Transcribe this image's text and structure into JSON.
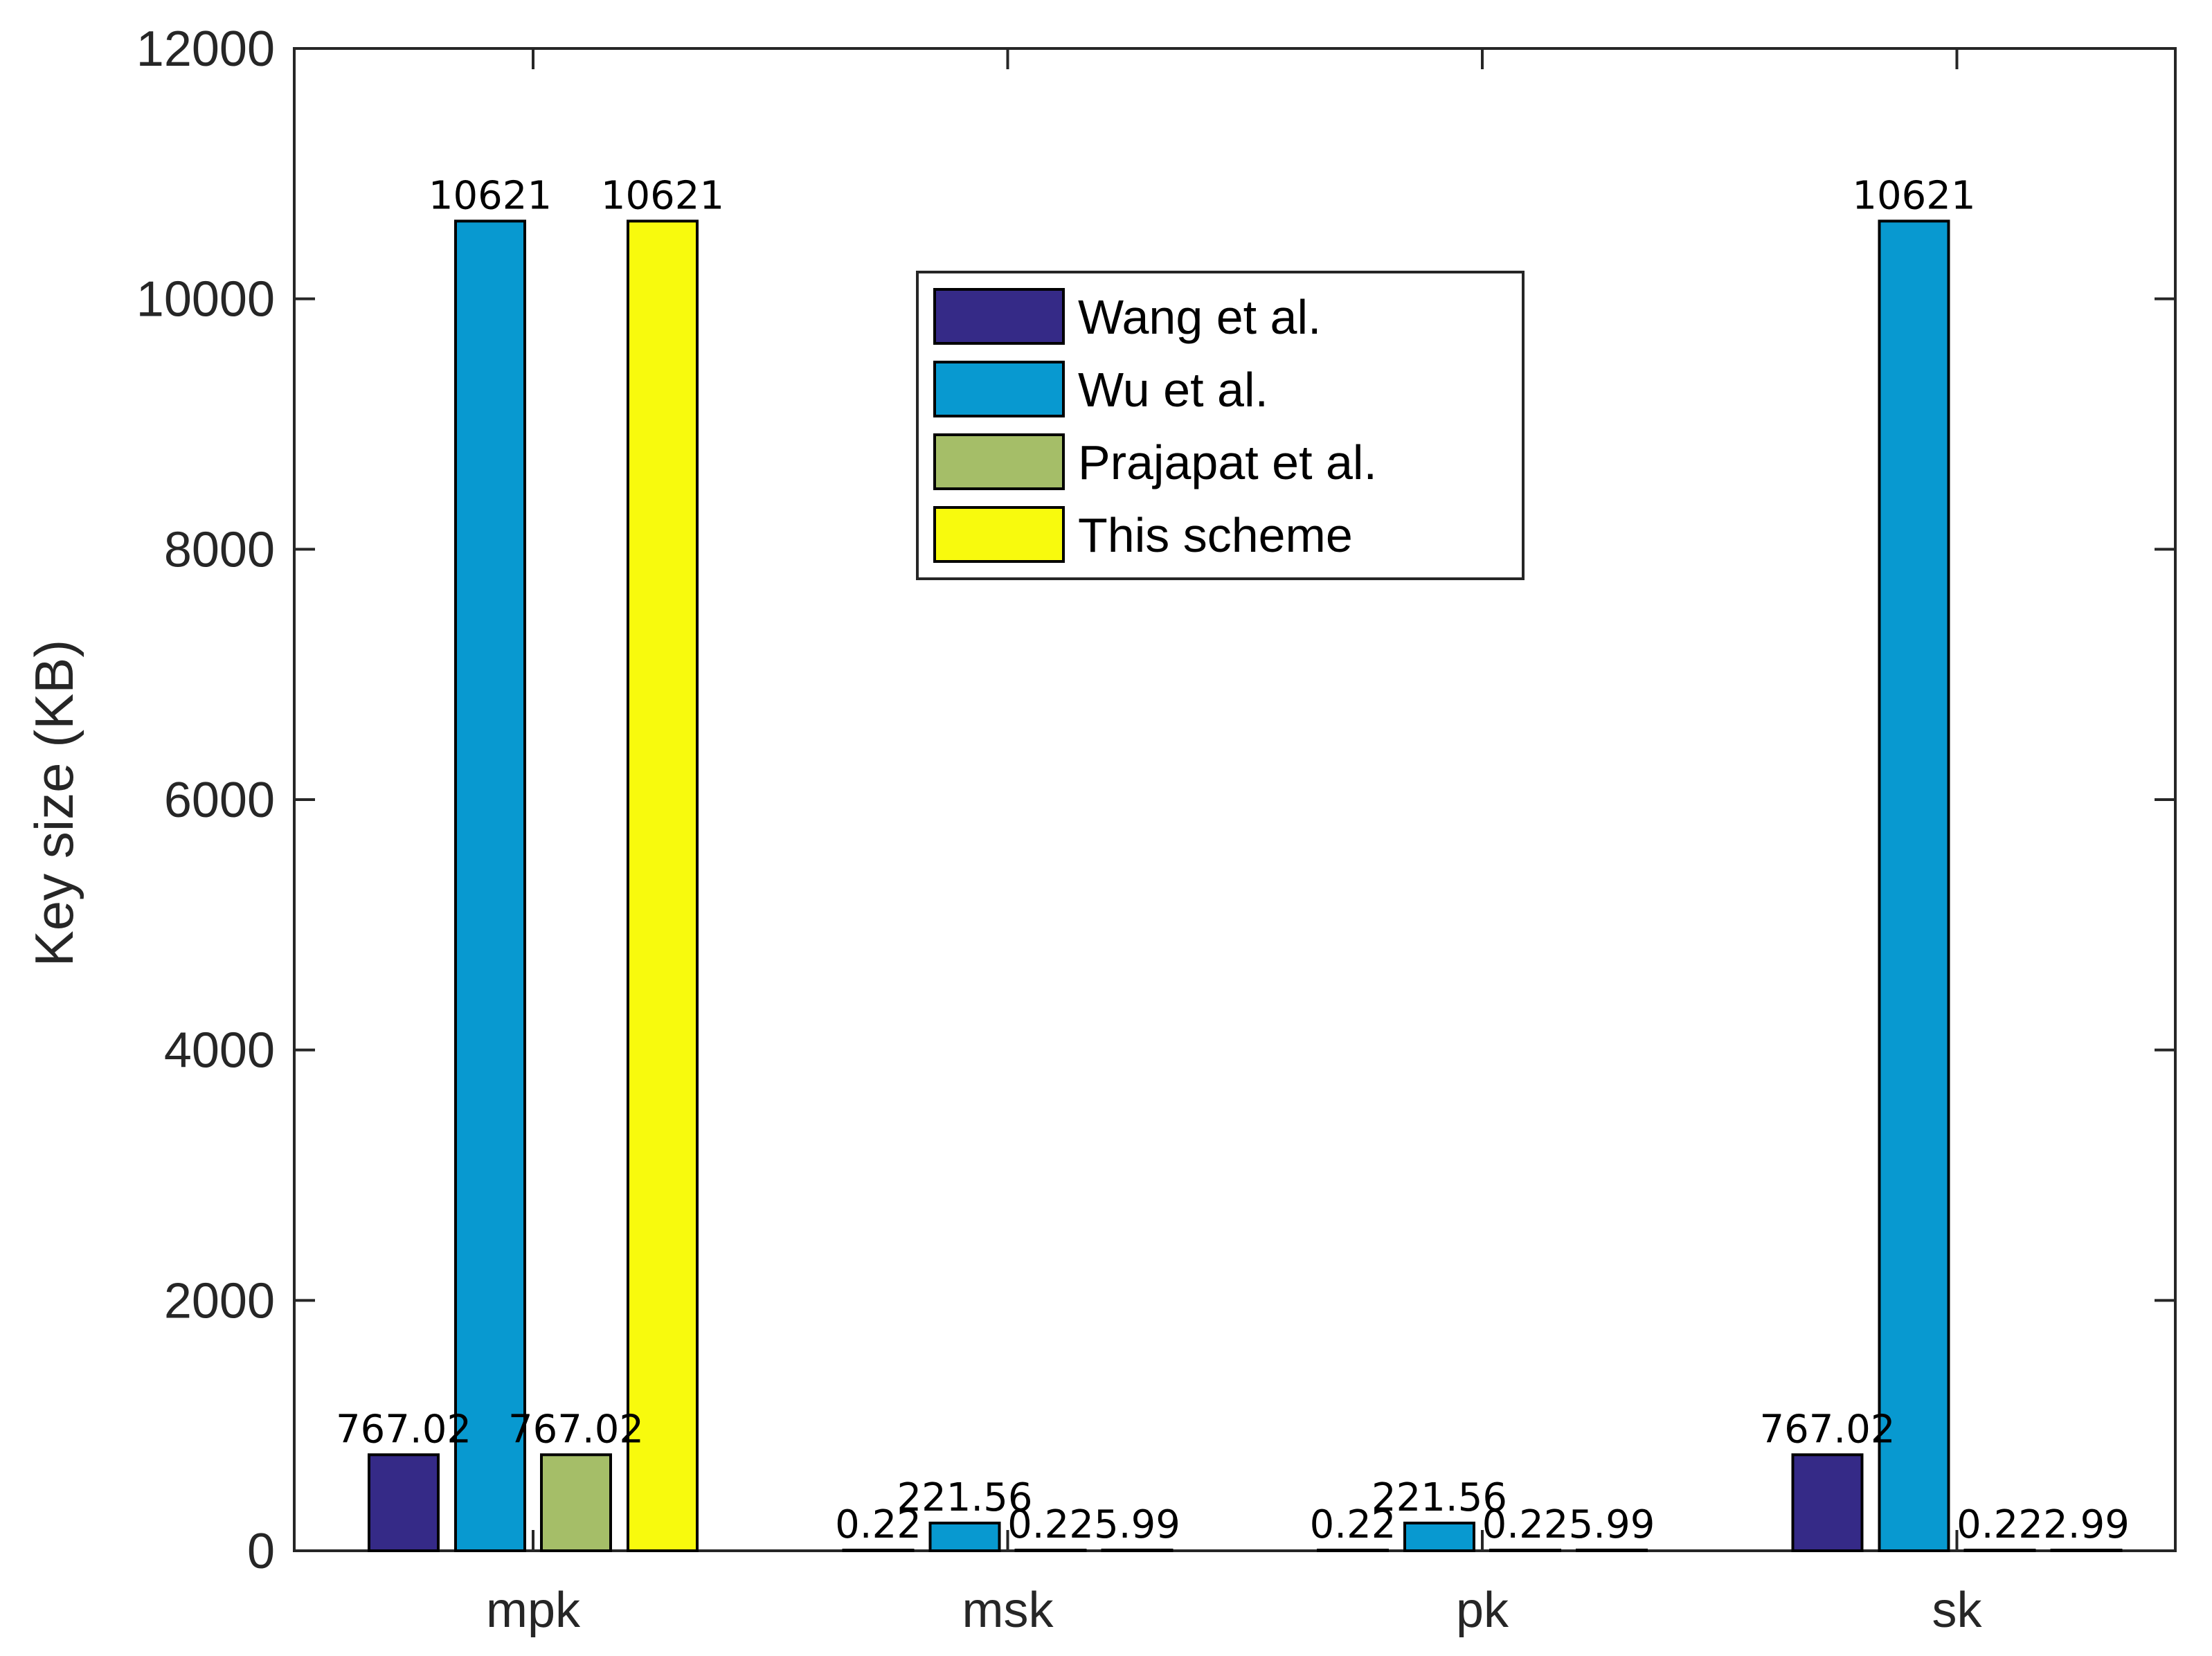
{
  "chart_data": {
    "type": "bar",
    "title": "",
    "xlabel": "",
    "ylabel": "Key size (KB)",
    "ylim": [
      0,
      12000
    ],
    "yticks": [
      0,
      2000,
      4000,
      6000,
      8000,
      10000,
      12000
    ],
    "ytick_labels": [
      "0",
      "2000",
      "4000",
      "6000",
      "8000",
      "10000",
      "12000"
    ],
    "categories": [
      "mpk",
      "msk",
      "pk",
      "sk"
    ],
    "series": [
      {
        "name": "Wang et al.",
        "color": "#352A87",
        "values": [
          767.02,
          0.22,
          0.22,
          767.02
        ],
        "labels": [
          "767.02",
          "0.22",
          "0.22",
          "767.02"
        ]
      },
      {
        "name": "Wu et al.",
        "color": "#0899D0",
        "values": [
          10621,
          221.56,
          221.56,
          10621
        ],
        "labels": [
          "10621",
          "221.56",
          "221.56",
          "10621"
        ]
      },
      {
        "name": "Prajapat et al.",
        "color": "#A5BE68",
        "values": [
          767.02,
          0.22,
          0.22,
          0.22
        ],
        "labels": [
          "767.02",
          "0.22",
          "0.22",
          "0.22"
        ]
      },
      {
        "name": "This scheme",
        "color": "#F8FA0D",
        "values": [
          10621,
          5.99,
          5.99,
          2.99
        ],
        "labels": [
          "10621",
          "5.99",
          "5.99",
          "2.99"
        ]
      }
    ],
    "legend_position": "top-center",
    "grid": false
  }
}
